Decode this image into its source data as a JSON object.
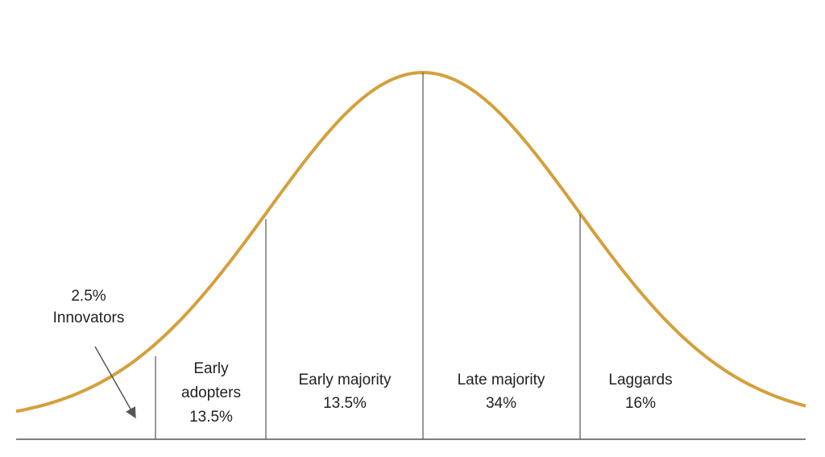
{
  "segments": [
    {
      "lines": [
        "2.5%",
        "Innovators"
      ]
    },
    {
      "lines": [
        "Early",
        "adopters",
        "13.5%"
      ]
    },
    {
      "lines": [
        "Early majority",
        "13.5%"
      ]
    },
    {
      "lines": [
        "Late majority",
        "34%"
      ]
    },
    {
      "lines": [
        "Laggards",
        "16%"
      ]
    }
  ]
}
